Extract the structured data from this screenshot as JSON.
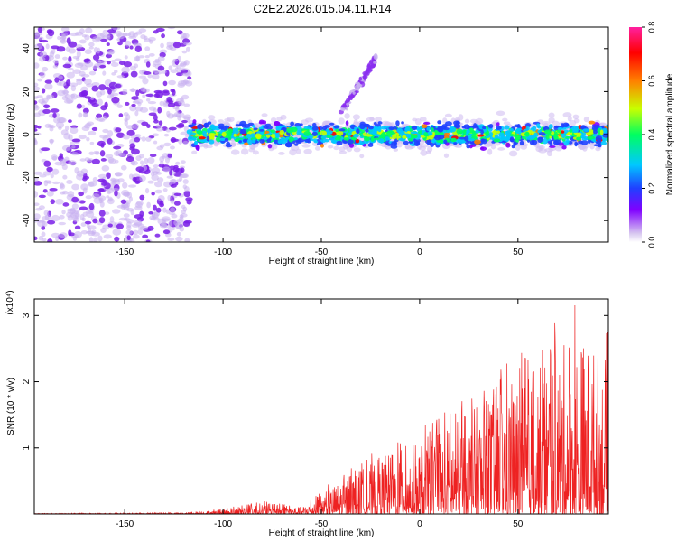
{
  "title": "C2E2.2026.015.04.11.R14",
  "chart_data": [
    {
      "type": "heatmap",
      "xlabel": "Height of straight line (km)",
      "ylabel": "Frequency (Hz)",
      "xlim": [
        -196,
        96
      ],
      "ylim": [
        -50,
        50
      ],
      "xticks": [
        -150,
        -100,
        -50,
        0,
        50
      ],
      "yticks": [
        -40,
        -20,
        0,
        20,
        40
      ],
      "colorbar": {
        "label": "Normalized spectral amplitude",
        "range": [
          0.0,
          0.8
        ],
        "ticks": [
          0.0,
          0.2,
          0.4,
          0.6,
          0.8
        ],
        "tick_labels": [
          "0.0",
          "0.2",
          "0.4",
          "0.6",
          "0.8"
        ],
        "colors": [
          "#d8c8f0",
          "#8000ff",
          "#2040ff",
          "#00c8ff",
          "#00ff60",
          "#c8ff00",
          "#ff8000",
          "#ff0000",
          "#ff20a0"
        ]
      },
      "features": [
        {
          "name": "noise",
          "x_range": [
            -196,
            -117
          ],
          "f_range": [
            -50,
            50
          ],
          "amplitude": 0.1
        },
        {
          "name": "signal-band",
          "x_range": [
            -117,
            96
          ],
          "f_center": 0,
          "f_halfwidth": 7,
          "amplitude": 0.4
        },
        {
          "name": "rising-branch",
          "x_range": [
            -40,
            -22
          ],
          "f_range": [
            10,
            36
          ],
          "amplitude": 0.1
        }
      ]
    },
    {
      "type": "line",
      "xlabel": "Height of straight line (km)",
      "ylabel": "SNR (10 * v/v)",
      "scale_label": "(x10⁴)",
      "xlim": [
        -196,
        96
      ],
      "ylim": [
        0,
        3.25
      ],
      "xticks": [
        -150,
        -100,
        -50,
        0,
        50
      ],
      "yticks": [
        1,
        2,
        3
      ],
      "color": "#ee2222",
      "envelope": [
        {
          "x": -196,
          "y": 0.01
        },
        {
          "x": -120,
          "y": 0.02
        },
        {
          "x": -100,
          "y": 0.08
        },
        {
          "x": -80,
          "y": 0.2
        },
        {
          "x": -60,
          "y": 0.12
        },
        {
          "x": -40,
          "y": 0.6
        },
        {
          "x": -20,
          "y": 1.0
        },
        {
          "x": 0,
          "y": 1.3
        },
        {
          "x": 20,
          "y": 1.7
        },
        {
          "x": 40,
          "y": 2.2
        },
        {
          "x": 60,
          "y": 2.6
        },
        {
          "x": 80,
          "y": 3.25
        },
        {
          "x": 96,
          "y": 2.8
        }
      ]
    }
  ]
}
